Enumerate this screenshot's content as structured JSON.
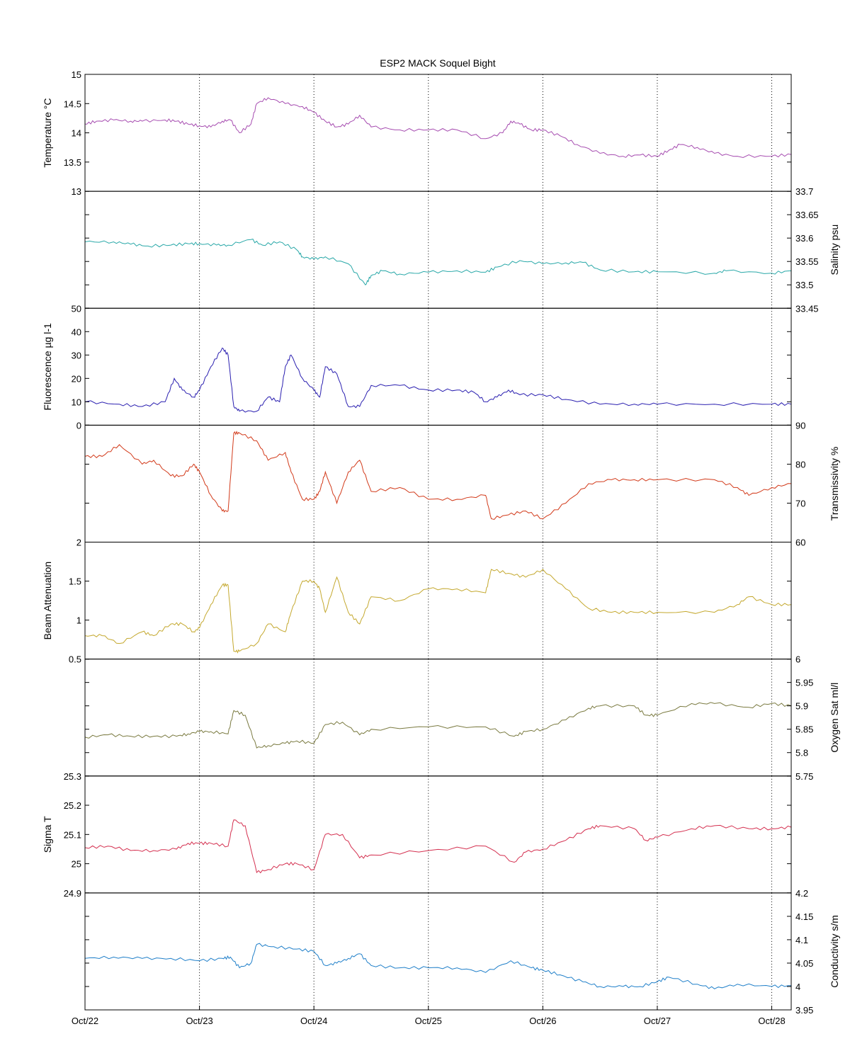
{
  "figure_title": "ESP2 MACK  Soquel Bight",
  "x_tick_labels": [
    "Oct/22",
    "Oct/23",
    "Oct/24",
    "Oct/25",
    "Oct/26",
    "Oct/27",
    "Oct/28"
  ],
  "chart_data": [
    {
      "type": "line",
      "name": "temperature",
      "ylabel": "Temperature °C",
      "axis_side": "left",
      "color": "#A64CB0",
      "ylim": [
        13,
        15
      ],
      "yticks": [
        13,
        13.5,
        14,
        14.5,
        15
      ],
      "x": [
        0,
        0.1,
        0.25,
        0.4,
        0.5,
        0.7,
        0.8,
        0.9,
        1.0,
        1.1,
        1.2,
        1.27,
        1.35,
        1.45,
        1.5,
        1.6,
        1.75,
        1.9,
        2.0,
        2.1,
        2.2,
        2.3,
        2.4,
        2.5,
        2.75,
        3.0,
        3.25,
        3.5,
        3.65,
        3.72,
        3.8,
        3.9,
        4.0,
        4.15,
        4.3,
        4.5,
        4.7,
        4.85,
        5.0,
        5.1,
        5.2,
        5.35,
        5.5,
        5.7,
        6.0,
        6.17
      ],
      "y": [
        14.15,
        14.2,
        14.22,
        14.2,
        14.2,
        14.22,
        14.2,
        14.15,
        14.12,
        14.1,
        14.2,
        14.22,
        14.0,
        14.15,
        14.5,
        14.6,
        14.5,
        14.45,
        14.35,
        14.2,
        14.1,
        14.15,
        14.3,
        14.1,
        14.05,
        14.05,
        14.05,
        13.9,
        14.0,
        14.2,
        14.15,
        14.05,
        14.05,
        13.95,
        13.8,
        13.65,
        13.6,
        13.62,
        13.6,
        13.7,
        13.8,
        13.75,
        13.65,
        13.6,
        13.6,
        13.63
      ]
    },
    {
      "type": "line",
      "name": "salinity",
      "ylabel": "Salinity psu",
      "axis_side": "right",
      "color": "#29A8A8",
      "ylim": [
        33.45,
        33.7
      ],
      "yticks": [
        33.45,
        33.5,
        33.55,
        33.6,
        33.65,
        33.7
      ],
      "x": [
        0,
        0.25,
        0.4,
        0.55,
        0.75,
        0.9,
        1.0,
        1.15,
        1.25,
        1.45,
        1.55,
        1.7,
        1.85,
        1.9,
        2.0,
        2.1,
        2.3,
        2.45,
        2.5,
        2.6,
        2.75,
        3.0,
        3.25,
        3.5,
        3.6,
        3.8,
        4.0,
        4.2,
        4.35,
        4.5,
        4.8,
        5.0,
        5.5,
        5.6,
        6.0,
        6.17
      ],
      "y": [
        33.592,
        33.592,
        33.587,
        33.583,
        33.585,
        33.588,
        33.588,
        33.585,
        33.585,
        33.597,
        33.585,
        33.592,
        33.575,
        33.56,
        33.555,
        33.56,
        33.545,
        33.5,
        33.52,
        33.53,
        33.523,
        33.527,
        33.53,
        33.527,
        33.538,
        33.552,
        33.545,
        33.547,
        33.548,
        33.532,
        33.528,
        33.528,
        33.525,
        33.53,
        33.525,
        33.53
      ]
    },
    {
      "type": "line",
      "name": "fluorescence",
      "ylabel": "Fluorescence µg l-1",
      "axis_side": "left",
      "color": "#2A1FB0",
      "ylim": [
        0,
        50
      ],
      "yticks": [
        0,
        10,
        20,
        30,
        40,
        50
      ],
      "x": [
        0,
        0.3,
        0.5,
        0.7,
        0.78,
        0.85,
        0.95,
        1.0,
        1.1,
        1.2,
        1.25,
        1.3,
        1.35,
        1.5,
        1.6,
        1.7,
        1.75,
        1.8,
        1.9,
        2.0,
        2.05,
        2.1,
        2.2,
        2.3,
        2.4,
        2.5,
        2.75,
        3.0,
        3.25,
        3.4,
        3.5,
        3.6,
        3.7,
        3.8,
        4.0,
        4.2,
        4.5,
        4.8,
        5.0,
        5.5,
        6.0,
        6.17
      ],
      "y": [
        10,
        9,
        8,
        10,
        20,
        15,
        12,
        15,
        25,
        33,
        30,
        8,
        6,
        6,
        12,
        10,
        25,
        30,
        20,
        15,
        12,
        25,
        22,
        8,
        8,
        17,
        17,
        15,
        15,
        14,
        10,
        12,
        15,
        13,
        13,
        11,
        9,
        9,
        9,
        9,
        9,
        9
      ]
    },
    {
      "type": "line",
      "name": "transmissivity",
      "ylabel": "Transmissivity %",
      "axis_side": "right",
      "color": "#D23A1A",
      "ylim": [
        60,
        90
      ],
      "yticks": [
        60,
        70,
        80,
        90
      ],
      "x": [
        0,
        0.15,
        0.3,
        0.5,
        0.6,
        0.75,
        0.85,
        0.95,
        1.0,
        1.1,
        1.2,
        1.25,
        1.3,
        1.35,
        1.5,
        1.6,
        1.75,
        1.8,
        1.9,
        2.0,
        2.05,
        2.1,
        2.2,
        2.3,
        2.4,
        2.5,
        2.75,
        3.0,
        3.25,
        3.5,
        3.55,
        3.7,
        3.85,
        4.0,
        4.2,
        4.4,
        4.6,
        4.8,
        5.0,
        5.5,
        5.7,
        5.8,
        6.0,
        6.17
      ],
      "y": [
        82,
        82,
        85,
        80,
        81,
        77,
        77,
        80,
        78,
        72,
        68,
        68,
        88,
        88,
        86,
        81,
        83,
        78,
        71,
        71,
        73,
        78,
        70,
        78,
        81,
        73,
        74,
        71,
        71,
        72,
        66,
        67,
        68,
        66,
        70,
        75,
        76,
        76,
        76,
        76,
        74,
        72,
        74,
        75
      ]
    },
    {
      "type": "line",
      "name": "beam_attenuation",
      "ylabel": "Beam Attenuation",
      "axis_side": "left",
      "color": "#C4A82E",
      "ylim": [
        0.5,
        2
      ],
      "yticks": [
        0.5,
        1,
        1.5,
        2
      ],
      "x": [
        0,
        0.15,
        0.3,
        0.5,
        0.6,
        0.75,
        0.85,
        0.95,
        1.0,
        1.1,
        1.2,
        1.25,
        1.3,
        1.35,
        1.5,
        1.6,
        1.75,
        1.8,
        1.9,
        2.0,
        2.05,
        2.1,
        2.2,
        2.3,
        2.4,
        2.5,
        2.75,
        3.0,
        3.25,
        3.5,
        3.55,
        3.7,
        3.85,
        4.0,
        4.2,
        4.4,
        4.6,
        4.8,
        5.0,
        5.5,
        5.7,
        5.8,
        6.0,
        6.17
      ],
      "y": [
        0.8,
        0.8,
        0.7,
        0.85,
        0.8,
        0.95,
        0.95,
        0.85,
        0.9,
        1.2,
        1.45,
        1.45,
        0.6,
        0.6,
        0.7,
        0.95,
        0.85,
        1.1,
        1.5,
        1.5,
        1.4,
        1.1,
        1.55,
        1.1,
        0.95,
        1.3,
        1.25,
        1.4,
        1.4,
        1.35,
        1.65,
        1.6,
        1.55,
        1.65,
        1.4,
        1.15,
        1.1,
        1.1,
        1.1,
        1.1,
        1.2,
        1.3,
        1.2,
        1.2
      ]
    },
    {
      "type": "line",
      "name": "oxygen_sat",
      "ylabel": "Oxygen Sat ml/l",
      "axis_side": "right",
      "color": "#7A7A40",
      "ylim": [
        5.75,
        6
      ],
      "yticks": [
        5.75,
        5.8,
        5.85,
        5.9,
        5.95,
        6
      ],
      "x": [
        0,
        0.2,
        0.4,
        0.6,
        0.8,
        0.9,
        1.0,
        1.1,
        1.25,
        1.3,
        1.4,
        1.5,
        1.6,
        1.75,
        1.85,
        2.0,
        2.1,
        2.25,
        2.4,
        2.5,
        3.0,
        3.5,
        3.75,
        3.85,
        4.0,
        4.2,
        4.4,
        4.5,
        4.8,
        4.9,
        5.0,
        5.3,
        5.5,
        5.8,
        6.0,
        6.17
      ],
      "y": [
        5.833,
        5.838,
        5.835,
        5.835,
        5.835,
        5.84,
        5.845,
        5.845,
        5.84,
        5.89,
        5.88,
        5.81,
        5.815,
        5.82,
        5.825,
        5.82,
        5.86,
        5.865,
        5.838,
        5.85,
        5.855,
        5.855,
        5.835,
        5.845,
        5.85,
        5.87,
        5.895,
        5.9,
        5.9,
        5.88,
        5.88,
        5.905,
        5.905,
        5.897,
        5.905,
        5.9
      ]
    },
    {
      "type": "line",
      "name": "sigma_t",
      "ylabel": "Sigma T",
      "axis_side": "left",
      "color": "#D42F4F",
      "ylim": [
        24.9,
        25.3
      ],
      "yticks": [
        24.9,
        25,
        25.1,
        25.2,
        25.3
      ],
      "x": [
        0,
        0.2,
        0.4,
        0.6,
        0.8,
        0.9,
        1.0,
        1.1,
        1.25,
        1.3,
        1.4,
        1.5,
        1.6,
        1.75,
        1.85,
        2.0,
        2.1,
        2.25,
        2.4,
        2.5,
        3.0,
        3.5,
        3.75,
        3.85,
        4.0,
        4.2,
        4.4,
        4.5,
        4.8,
        4.9,
        5.0,
        5.3,
        5.5,
        5.8,
        6.0,
        6.17
      ],
      "y": [
        25.055,
        25.06,
        25.045,
        25.045,
        25.05,
        25.07,
        25.07,
        25.07,
        25.06,
        25.15,
        25.13,
        24.97,
        24.98,
        25.0,
        25.0,
        24.98,
        25.1,
        25.1,
        25.02,
        25.03,
        25.045,
        25.06,
        25.005,
        25.04,
        25.05,
        25.08,
        25.12,
        25.13,
        25.12,
        25.08,
        25.09,
        25.12,
        25.13,
        25.12,
        25.12,
        25.125
      ]
    },
    {
      "type": "line",
      "name": "conductivity",
      "ylabel": "Conductivity s/m",
      "axis_side": "right",
      "color": "#1F7FC9",
      "ylim": [
        3.95,
        4.2
      ],
      "yticks": [
        3.95,
        4,
        4.05,
        4.1,
        4.15,
        4.2
      ],
      "x": [
        0,
        0.25,
        0.5,
        0.75,
        1.0,
        1.2,
        1.27,
        1.35,
        1.45,
        1.5,
        1.65,
        1.85,
        2.0,
        2.1,
        2.2,
        2.3,
        2.4,
        2.5,
        2.75,
        3.0,
        3.25,
        3.5,
        3.72,
        3.9,
        4.0,
        4.15,
        4.35,
        4.5,
        4.7,
        4.85,
        5.0,
        5.1,
        5.35,
        5.5,
        5.7,
        6.0,
        6.17
      ],
      "y": [
        4.06,
        4.063,
        4.06,
        4.06,
        4.055,
        4.06,
        4.063,
        4.04,
        4.05,
        4.09,
        4.085,
        4.08,
        4.075,
        4.045,
        4.05,
        4.06,
        4.07,
        4.045,
        4.04,
        4.04,
        4.04,
        4.03,
        4.055,
        4.04,
        4.035,
        4.025,
        4.01,
        4.0,
        4.0,
        4.0,
        4.01,
        4.02,
        4.005,
        3.995,
        4.005,
        4.0,
        4.002
      ]
    }
  ]
}
